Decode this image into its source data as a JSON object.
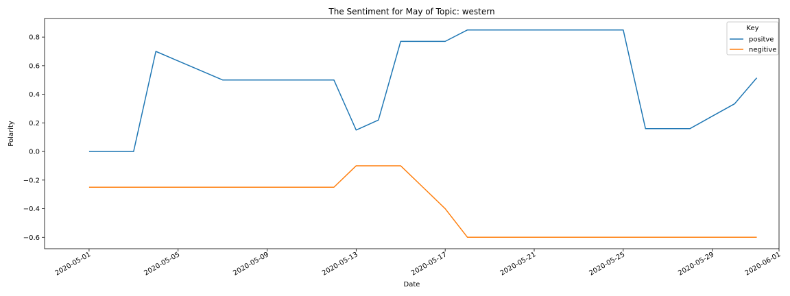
{
  "chart_data": {
    "type": "line",
    "title": "The Sentiment for May of Topic: western",
    "xlabel": "Date",
    "ylabel": "Polarity",
    "xlim": [
      "2020-04-29",
      "2020-06-01"
    ],
    "ylim": [
      -0.68,
      0.93
    ],
    "grid": false,
    "legend": {
      "title": "Key",
      "placement": "top-right"
    },
    "x_ticks": [
      "2020-05-01",
      "2020-05-05",
      "2020-05-09",
      "2020-05-13",
      "2020-05-17",
      "2020-05-21",
      "2020-05-25",
      "2020-05-29",
      "2020-06-01"
    ],
    "y_ticks": [
      "0.8",
      "0.6",
      "0.4",
      "0.2",
      "0.0",
      "−0.2",
      "−0.4",
      "−0.6"
    ],
    "y_tick_values": [
      0.8,
      0.6,
      0.4,
      0.2,
      0.0,
      -0.2,
      -0.4,
      -0.6
    ],
    "x": [
      "2020-05-01",
      "2020-05-02",
      "2020-05-03",
      "2020-05-04",
      "2020-05-05",
      "2020-05-06",
      "2020-05-07",
      "2020-05-08",
      "2020-05-09",
      "2020-05-10",
      "2020-05-11",
      "2020-05-12",
      "2020-05-13",
      "2020-05-14",
      "2020-05-15",
      "2020-05-16",
      "2020-05-17",
      "2020-05-18",
      "2020-05-19",
      "2020-05-20",
      "2020-05-21",
      "2020-05-22",
      "2020-05-23",
      "2020-05-24",
      "2020-05-25",
      "2020-05-26",
      "2020-05-27",
      "2020-05-28",
      "2020-05-29",
      "2020-05-30",
      "2020-05-31"
    ],
    "series": [
      {
        "name": "positve",
        "color": "#1f77b4",
        "values": [
          0.0,
          0.0,
          0.0,
          0.7,
          0.633,
          0.567,
          0.5,
          0.5,
          0.5,
          0.5,
          0.5,
          0.5,
          0.15,
          0.22,
          0.77,
          0.77,
          0.77,
          0.85,
          0.85,
          0.85,
          0.85,
          0.85,
          0.85,
          0.85,
          0.85,
          0.16,
          0.16,
          0.16,
          0.247,
          0.333,
          0.515
        ]
      },
      {
        "name": "negitive",
        "color": "#ff7f0e",
        "values": [
          -0.25,
          -0.25,
          -0.25,
          -0.25,
          -0.25,
          -0.25,
          -0.25,
          -0.25,
          -0.25,
          -0.25,
          -0.25,
          -0.25,
          -0.1,
          -0.1,
          -0.1,
          -0.25,
          -0.4,
          -0.6,
          -0.6,
          -0.6,
          -0.6,
          -0.6,
          -0.6,
          -0.6,
          -0.6,
          -0.6,
          -0.6,
          -0.6,
          -0.6,
          -0.6,
          -0.6
        ]
      }
    ]
  }
}
